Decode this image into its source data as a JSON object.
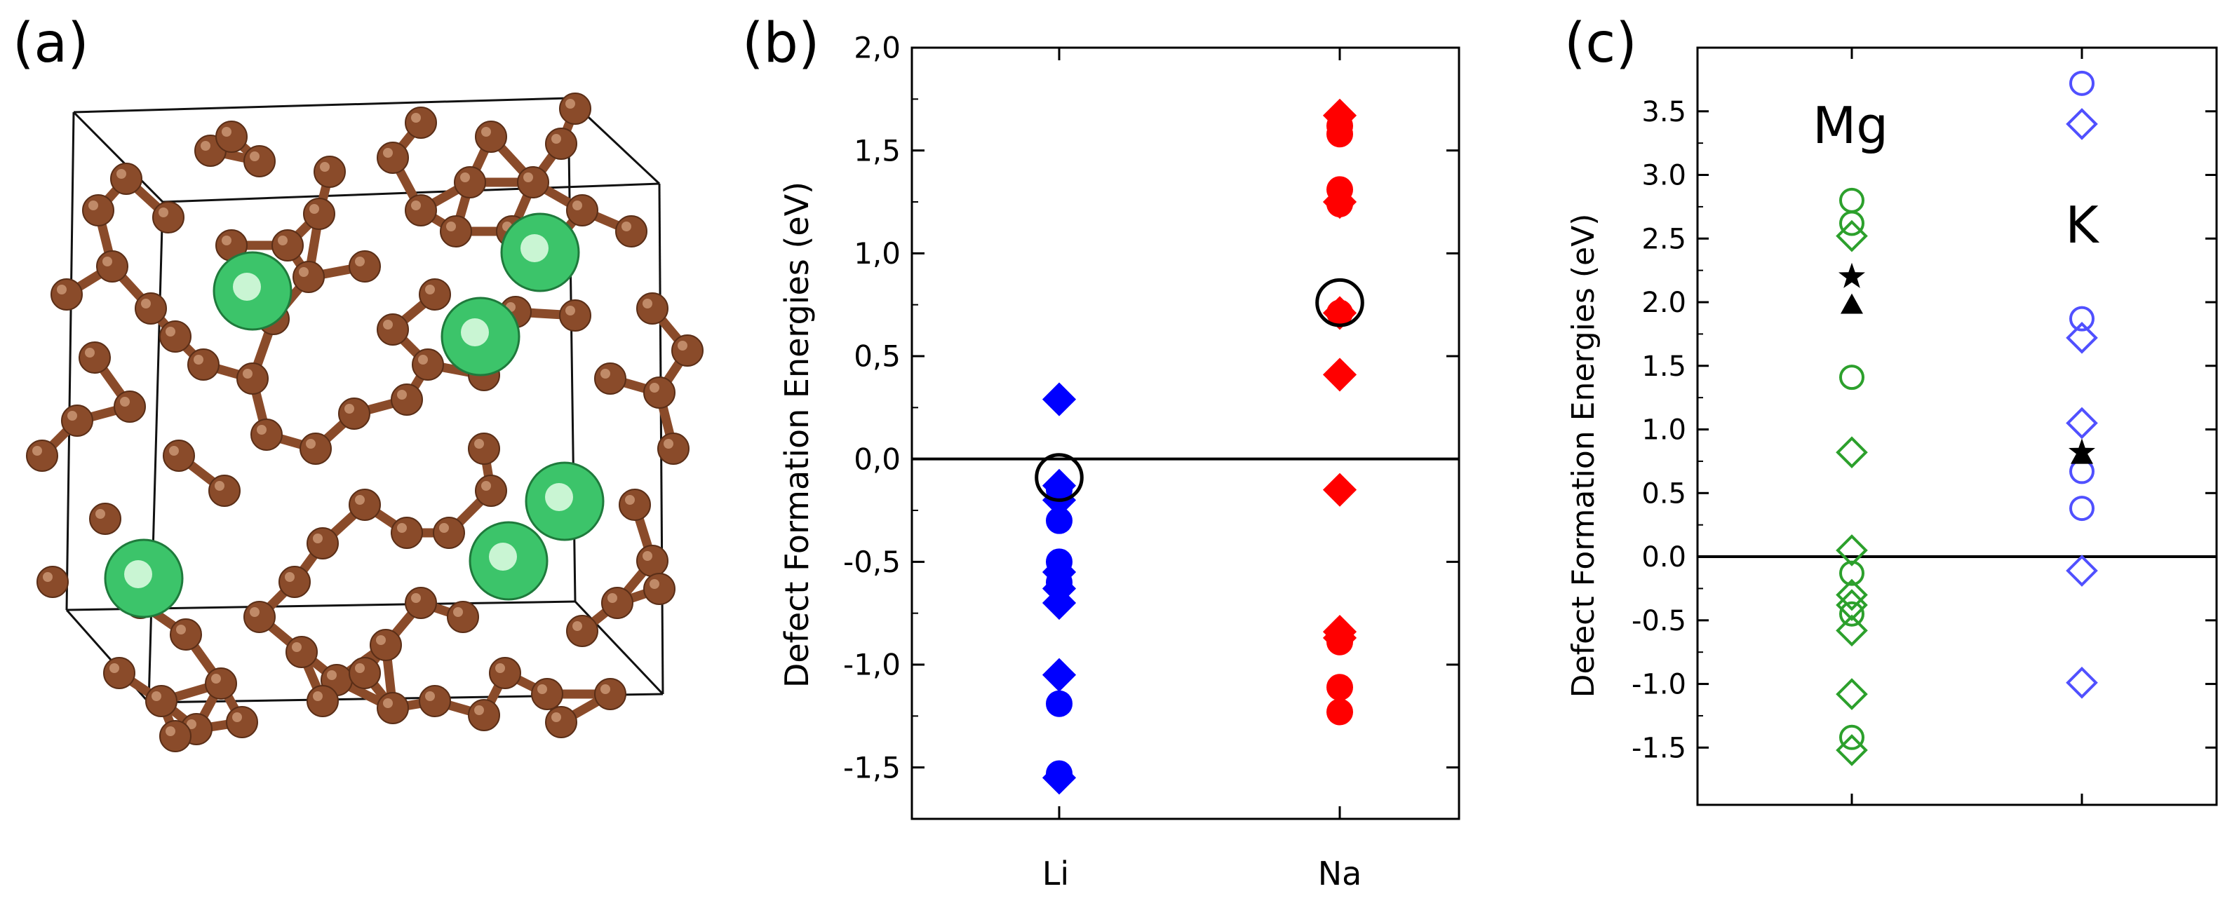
{
  "panels": {
    "a": {
      "label": "(a)"
    },
    "b": {
      "label": "(b)"
    },
    "c": {
      "label": "(c)"
    }
  },
  "structure": {
    "atom_colors": {
      "carbon": "#8a4b2a",
      "dopant": "#3cc46a"
    }
  },
  "chart_data": [
    {
      "id": "b",
      "type": "scatter",
      "title": "",
      "ylabel": "Defect Formation Energies (eV)",
      "xlabel": "",
      "categories": [
        "Li",
        "Na"
      ],
      "ylim": [
        -1.75,
        2.0
      ],
      "yticks": [
        -1.5,
        -1.0,
        -0.5,
        0.0,
        0.5,
        1.0,
        1.5,
        2.0
      ],
      "ytick_labels": [
        "-1,5",
        "-1,0",
        "-0,5",
        "0,0",
        "0,5",
        "1,0",
        "1,5",
        "2,0"
      ],
      "zero_line": true,
      "series": [
        {
          "name": "Li diamonds",
          "category": "Li",
          "marker": "diamond",
          "filled": true,
          "color": "#0000ff",
          "values": [
            0.29,
            -0.13,
            -0.2,
            -0.55,
            -0.63,
            -0.7,
            -1.05,
            -1.55
          ]
        },
        {
          "name": "Li circles",
          "category": "Li",
          "marker": "circle",
          "filled": true,
          "color": "#0000ff",
          "values": [
            -0.15,
            -0.3,
            -0.5,
            -0.6,
            -1.19,
            -1.53
          ]
        },
        {
          "name": "Li reference",
          "category": "Li",
          "marker": "open-circle",
          "filled": false,
          "color": "#000000",
          "values": [
            -0.09
          ]
        },
        {
          "name": "Na diamonds",
          "category": "Na",
          "marker": "diamond",
          "filled": true,
          "color": "#ff0000",
          "values": [
            1.67,
            1.25,
            0.71,
            0.41,
            -0.15,
            -0.84,
            -0.87
          ]
        },
        {
          "name": "Na circles",
          "category": "Na",
          "marker": "circle",
          "filled": true,
          "color": "#ff0000",
          "values": [
            1.62,
            1.58,
            1.31,
            1.24,
            0.71,
            -0.89,
            -1.11,
            -1.23
          ]
        },
        {
          "name": "Na reference",
          "category": "Na",
          "marker": "open-circle",
          "filled": false,
          "color": "#000000",
          "values": [
            0.76
          ]
        }
      ]
    },
    {
      "id": "c",
      "type": "scatter",
      "title": "",
      "ylabel": "Defect Formation Energies (eV)",
      "xlabel": "",
      "categories": [
        "Mg",
        "K"
      ],
      "ylim": [
        -1.95,
        4.0
      ],
      "yticks": [
        -1.5,
        -1.0,
        -0.5,
        0.0,
        0.5,
        1.0,
        1.5,
        2.0,
        2.5,
        3.0,
        3.5
      ],
      "ytick_labels": [
        "-1.5",
        "-1.0",
        "-0.5",
        "0.0",
        "0.5",
        "1.0",
        "1.5",
        "2.0",
        "2.5",
        "3.0",
        "3.5"
      ],
      "zero_line": true,
      "series": [
        {
          "name": "Mg circles",
          "category": "Mg",
          "marker": "open-circle",
          "filled": false,
          "color": "#2ca02c",
          "values": [
            2.8,
            2.62,
            1.41,
            -0.13,
            -0.45,
            -1.42
          ]
        },
        {
          "name": "Mg diamonds",
          "category": "Mg",
          "marker": "open-diamond",
          "filled": false,
          "color": "#2ca02c",
          "values": [
            2.52,
            0.82,
            0.05,
            -0.3,
            -0.38,
            -0.58,
            -1.08,
            -1.52
          ]
        },
        {
          "name": "Mg star",
          "category": "Mg",
          "marker": "star",
          "filled": true,
          "color": "#000000",
          "values": [
            2.2
          ]
        },
        {
          "name": "Mg triangle",
          "category": "Mg",
          "marker": "triangle",
          "filled": true,
          "color": "#000000",
          "values": [
            1.98
          ]
        },
        {
          "name": "K circles",
          "category": "K",
          "marker": "open-circle",
          "filled": false,
          "color": "#5050ff",
          "values": [
            3.72,
            1.87,
            0.67,
            0.38
          ]
        },
        {
          "name": "K diamonds",
          "category": "K",
          "marker": "open-diamond",
          "filled": false,
          "color": "#5050ff",
          "values": [
            3.4,
            1.72,
            1.05,
            -0.11,
            -0.99
          ]
        },
        {
          "name": "K star",
          "category": "K",
          "marker": "star",
          "filled": true,
          "color": "#000000",
          "values": [
            0.82
          ]
        },
        {
          "name": "K triangle",
          "category": "K",
          "marker": "triangle",
          "filled": true,
          "color": "#000000",
          "values": [
            0.8
          ]
        }
      ]
    }
  ]
}
